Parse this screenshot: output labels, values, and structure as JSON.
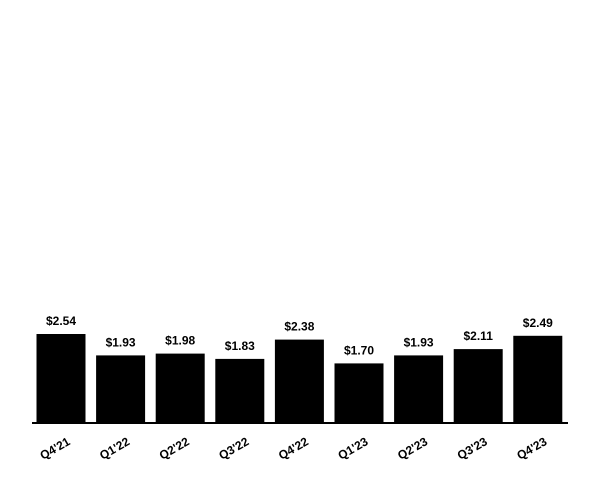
{
  "chart_data": {
    "type": "bar",
    "categories": [
      "Q4'21",
      "Q1'22",
      "Q2'22",
      "Q3'22",
      "Q4'22",
      "Q1'23",
      "Q2'23",
      "Q3'23",
      "Q4'23"
    ],
    "values": [
      2.54,
      1.93,
      1.98,
      1.83,
      2.38,
      1.7,
      1.93,
      2.11,
      2.49
    ],
    "value_labels": [
      "$2.54",
      "$1.93",
      "$1.98",
      "$1.83",
      "$2.38",
      "$1.70",
      "$1.93",
      "$2.11",
      "$2.49"
    ],
    "title": "",
    "xlabel": "",
    "ylabel": "",
    "ylim": [
      0,
      2.54
    ],
    "grid": false,
    "legend": "none",
    "colors": {
      "bar": "#000000",
      "axis": "#000000"
    }
  }
}
